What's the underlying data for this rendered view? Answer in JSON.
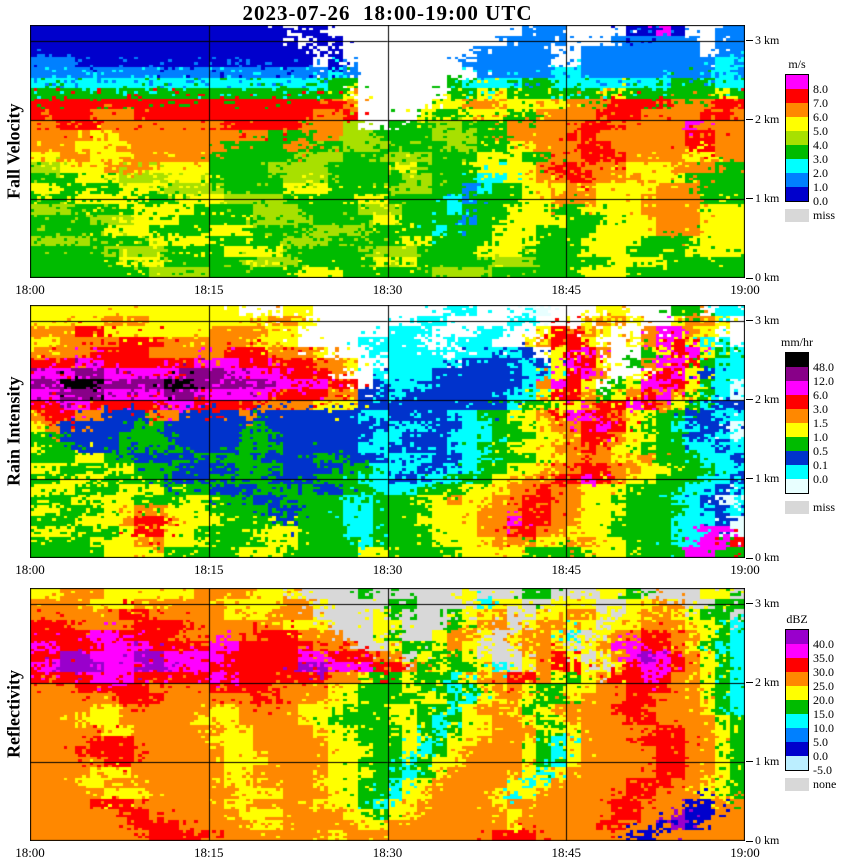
{
  "title": "2023-07-26  18:00-19:00 UTC",
  "chart_data": [
    {
      "type": "heatmap",
      "name": "Fall Velocity",
      "unit": "m/s",
      "x_ticks": [
        "18:00",
        "18:15",
        "18:30",
        "18:45",
        "19:00"
      ],
      "y_ticks": [
        {
          "label": "3 km",
          "km": 3
        },
        {
          "label": "2 km",
          "km": 2
        },
        {
          "label": "1 km",
          "km": 1
        },
        {
          "label": "0 km",
          "km": 0
        }
      ],
      "y_top_km": 3.2,
      "background": "#ffffff",
      "colorbar": {
        "labels": [
          "8.0",
          "7.0",
          "6.0",
          "5.0",
          "4.0",
          "3.0",
          "2.0",
          "1.0",
          "0.0"
        ],
        "colors": [
          "#ff00ff",
          "#ff0000",
          "#ff8800",
          "#ffff00",
          "#a8e000",
          "#00bb00",
          "#00ffff",
          "#0080ff",
          "#0000cc"
        ],
        "missing_label": "miss",
        "missing_color": "#d8d8d8"
      },
      "palette": {
        "m": "#ff00ff",
        "r": "#ff0000",
        "o": "#ff8800",
        "y": "#ffff00",
        "l": "#a8e000",
        "g": "#00bb00",
        "c": "#00ffff",
        "b": "#0080ff",
        "d": "#0000cc",
        ".": "#ffffff"
      },
      "grid_cols": 48,
      "grid_rows_top_to_bottom": [
        "ddddddddddddddddd.dd.............bbb....ddmd..bb",
        "dddddddddddddddddd.dd...........bbbb...bbbbbb.bb",
        "ddddddddddddddddddd.d.........bbbbb..bbbbbbbb.bb",
        "bbbdddddddddddddddd.d........bbbbbb..bbbbbbbbbcc",
        "bbbbbbbbbbbbbbbbbbbbcb........bbbbbccbbbbbbbbbcb",
        "ccccccccccccccccccccgg......gccccggccccccccgggcc",
        "gggggggggggggggggggggy......ggyygggggggyggggggyg",
        "rrrrrrrrrrrrrrrrrrrrro.....yyoooyyyyooorrrrooorr",
        "rrrrooorrrrrrrrrrrroor....yggyyyggoooorrroooorro",
        "oorrroooooooorrrrroool..gggllgggooooorrooooomooor",
        "ooooyyoooooooooogggoollgggglllggoooorroooooorroo",
        "oooyyyoooooooggggoogglllggggllggyyooorrooooorroo",
        "yyooyyyooooogggggglllggglllgggyyyggoorrrooooyyooo",
        "llyyyoooyyyyggggllllggggyyggggyyyyorroooyyyooogg",
        "gggyyylllyyyggggglllgggggllgggccyyoorroooyyygggg",
        "yyggggyyyllllggggyyygggglllggbcggyyyooyyyyoooggg",
        "gggyyyygggyyyllllgggggyyggggcbgggyyoooyyyooooggg",
        "lllggggyyyygggglllgggglllgggcgggyyyggyyyyooooyyy",
        "gggglllyyygggggllllggggyyggggbggyyyygggyyyoooyyy",
        "gggggyyyggggyyyggggllllggggcgggyyyggggyyyyoooyyy",
        "llllggggyyyyggggglllgggggyyggggyyygggyyyyggggyyy",
        "gggggllllggggyyyygggggllllggggyyyggggyyyggggyyyy",
        "ggggggyyygggggllllgggggyyyggggglllgggggyyyyggggg",
        "ggggggggllllggggggyyyggggggllllggggggyyygggggggg"
      ]
    },
    {
      "type": "heatmap",
      "name": "Rain Intensity",
      "unit": "mm/hr",
      "x_ticks": [
        "18:00",
        "18:15",
        "18:30",
        "18:45",
        "19:00"
      ],
      "y_ticks": [
        {
          "label": "3 km",
          "km": 3
        },
        {
          "label": "2 km",
          "km": 2
        },
        {
          "label": "1 km",
          "km": 1
        },
        {
          "label": "0 km",
          "km": 0
        }
      ],
      "y_top_km": 3.2,
      "background": "#ffffff",
      "colorbar": {
        "labels": [
          "48.0",
          "12.0",
          "6.0",
          "3.0",
          "1.5",
          "1.0",
          "0.5",
          "0.1",
          "0.0"
        ],
        "colors": [
          "#000000",
          "#880088",
          "#ff00ff",
          "#ff0000",
          "#ff8800",
          "#ffff00",
          "#00bb00",
          "#0033cc",
          "#00ffff",
          "#e8ffff"
        ],
        "missing_label": "miss",
        "missing_color": "#d8d8d8"
      },
      "palette": {
        "k": "#000000",
        "p": "#880088",
        "m": "#ff00ff",
        "r": "#ff0000",
        "o": "#ff8800",
        "y": "#ffff00",
        "g": "#00bb00",
        "b": "#0033cc",
        "c": "#00ffff",
        "w": "#e8ffff",
        ".": "#ffffff"
      },
      "grid_cols": 48,
      "grid_rows_top_to_bottom": [
        "yyyyyyyyyyyyyy...yy.........cc...ww...yy...gg.cc",
        "yyyyyoooyyyyyyyyooy.......cc....cc...yooy..yooy.",
        "ooorryyyyyyyooooyy......ccc...cc..yrroy..ommoy..",
        "yyoooorrrooooooyyy....cccc..ccc..yorry..yomrycc.",
        "oooorrrrooooorrroooy...ccccc.ccccb.yrmo..gyrmygc",
        "rrrmmrrrrrrmmmrrrrrooy..cccccbbbbcbymry.gommrgcc",
        "mmmppmmmmmpppmmmmrrro..ccccbbbbbbccyrmo..yrmybcc",
        "ppkkkppppkkpppppmmmmrr.bcccbbbbbbcomry.gymmrygcw",
        "mmpppmmmmppmmmmmrrrroobbcbbbbbbbccyrrogyormoygcw",
        "rrmmrrrrrmmrrrrooooyyybbbbbbbbbbcggyyorrmroygcbb",
        "orroobbboobbbbobbbbbbbccbbbbccggyyormmroyyggbbcc",
        "yobbbbbggbbbbbbgbbbbbbbbcccbbccggyyoormryggccbbw",
        "ggbbbbgggbbbbbggbbbbbbbccbbbcccgggyyorroyyggbbcw",
        "yggbbbggggbbbbgggbbbbbccbbbbccggyyyooroyygggccbc",
        "gggyyggbbbbggggbbbbggbbbcccbbccgggyyoooyyogggccb",
        "yygggyygggbbbbgggbbbbggcccbbccggyyyoorrooyygggcc",
        "ggyyyggggbbbggggbbbgggccbbccgggyyoorrmroyygggccb",
        "yyygggyyygggbbbggggbbggcccgggyyyoorooyyyggggccbc",
        "gggyyyygggyygggbbggggccgggyyoyyoorrooyyggggccbww",
        "yygggyyooyyyggggbbgggccggggyyyooorrooyyyggggccbc",
        "gggyyyorroyyyggggbgggccgggyyyyoomrrooyyggggcccbw",
        "yyygggyrryyggggyyygggccggggyyyoorrooyyyggggccmmw",
        "ggggyyyooyyyggggyyggggcggggyyyyoooyyooyygggccmmr",
        "gggggyyyygggggyyygggggyygggggyyyyggggyyyggggmmgg"
      ]
    },
    {
      "type": "heatmap",
      "name": "Reflectivity",
      "unit": "dBZ",
      "x_ticks": [
        "18:00",
        "18:15",
        "18:30",
        "18:45",
        "19:00"
      ],
      "y_ticks": [
        {
          "label": "3 km",
          "km": 3
        },
        {
          "label": "2 km",
          "km": 2
        },
        {
          "label": "1 km",
          "km": 1
        },
        {
          "label": "0 km",
          "km": 0
        }
      ],
      "y_top_km": 3.2,
      "background": "#d8d8d8",
      "colorbar": {
        "labels": [
          "40.0",
          "35.0",
          "30.0",
          "25.0",
          "20.0",
          "15.0",
          "10.0",
          "5.0",
          "0.0",
          "-5.0"
        ],
        "colors": [
          "#9900cc",
          "#ff00ff",
          "#ff0000",
          "#ff8800",
          "#ffff00",
          "#00bb00",
          "#00ffff",
          "#0080ff",
          "#0000cc",
          "#bbeeff"
        ],
        "missing_label": "none",
        "missing_color": "#d8d8d8"
      },
      "palette": {
        "v": "#9900cc",
        "m": "#ff00ff",
        "r": "#ff0000",
        "o": "#ff8800",
        "y": "#ffff00",
        "g": "#00bb00",
        "c": "#00ffff",
        "b": "#0080ff",
        "d": "#0000cc",
        "e": "#bbeeff",
        ".": "#d8d8d8"
      },
      "grid_cols": 48,
      "grid_rows_top_to_bottom": [
        "yyoooyyyyyyooooyyy....g......y...gg...yyg....yy.",
        "ooooyyyooooooyyyyooy....gg....cyy..yyy..yyoo..gg",
        "oooooorroooooyyyooo....yg...gyyo..yyooy.yooyygg.",
        "rrroooorrrrooooooyyy...yy...gyoo.yooyy.yyoooyygc",
        "rrrrmmrrrrooooorrrooo..yg..yooy.yooyc.yoorrooygc",
        "mmrrrmmmrrrrmmrrrrrooo..yggyoy..yooy.yommrroygcc",
        "rrvvmmmvvmmmmrrrrrmmrrroo.yggyy..yory.yomvmroygc",
        "mmvvvmmvvmmmrrrrrrvvmmmrrogyggyc.yorry.yrmmroygc",
        "rrrrmmmrrrrrmmrrrrrrooyggyggcyoorroygyorrmrooygc",
        "ooorrrrroooorrrrooooyygggyggcgyooyggyyoorrrooygc",
        "oooooorrroooooorroooyyggggyygcyyoyggyooorroooygc",
        "ooooyyooooooyyooooyyygggyyggcyooygyoooorrooooygc",
        "oooyyyoooooyyyooooyyggggyygcgyyooygyoooorrooooyg",
        "oooooyyooooooyyooooyyygggygcgyyoooygyooooorrooyg",
        "oooorrroooooyyyoooooyygggycgyyoooygcyoooorrrooyg",
        "ooorrrrooooooyyoooooyyyggycgyooooygcyooooorrooyg",
        "ooooorrooooooyyyooooyygggcgyyooooygcyooooorrooyg",
        "ooooyyyooooooyyoooooyyyggcgyoooooycyoooooorrooyg",
        "oooyyooooooooyyooooyyyggcyyoooooycyooooorrrooyyg",
        "oooooyyyooooooyyyoooyyggcyyooooycyoooooorroooyyg",
        "oooorrrooooooyyooooyyygcyyoooooyooooooorroooddoo",
        "oooooorrooooooyyyooooyygyyooooooyoooooorroovddoo",
        "ooooooorrroooooyyoooooyyooooooooyooooorroodvdooo",
        "oooooooorrrrooooooooyoooooooooorrrooooooddoooooo"
      ]
    }
  ]
}
